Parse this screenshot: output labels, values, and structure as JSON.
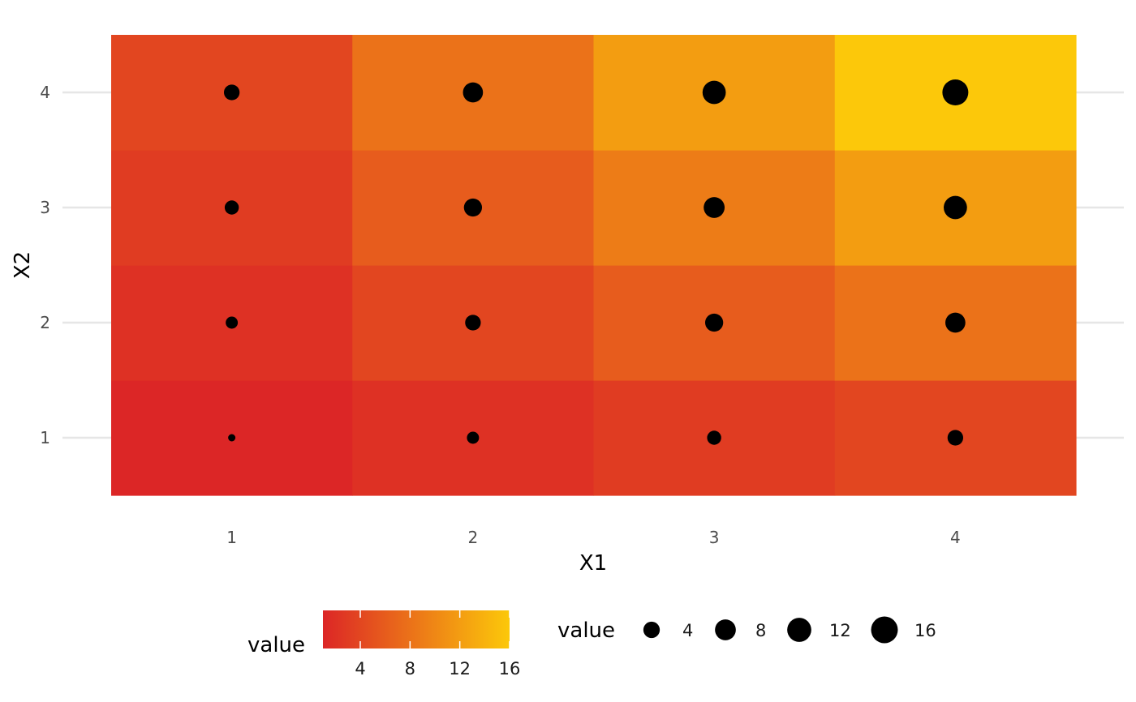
{
  "chart_data": {
    "type": "heatmap",
    "title": "",
    "xlabel": "X1",
    "ylabel": "X2",
    "x_categories": [
      "1",
      "2",
      "3",
      "4"
    ],
    "y_categories": [
      "1",
      "2",
      "3",
      "4"
    ],
    "cells": [
      {
        "x": 1,
        "y": 1,
        "value": 1
      },
      {
        "x": 2,
        "y": 1,
        "value": 2
      },
      {
        "x": 3,
        "y": 1,
        "value": 3
      },
      {
        "x": 4,
        "y": 1,
        "value": 4
      },
      {
        "x": 1,
        "y": 2,
        "value": 2
      },
      {
        "x": 2,
        "y": 2,
        "value": 4
      },
      {
        "x": 3,
        "y": 2,
        "value": 6
      },
      {
        "x": 4,
        "y": 2,
        "value": 8
      },
      {
        "x": 1,
        "y": 3,
        "value": 3
      },
      {
        "x": 2,
        "y": 3,
        "value": 6
      },
      {
        "x": 3,
        "y": 3,
        "value": 9
      },
      {
        "x": 4,
        "y": 3,
        "value": 12
      },
      {
        "x": 1,
        "y": 4,
        "value": 4
      },
      {
        "x": 2,
        "y": 4,
        "value": 8
      },
      {
        "x": 3,
        "y": 4,
        "value": 12
      },
      {
        "x": 4,
        "y": 4,
        "value": 16
      }
    ],
    "value_range": [
      1,
      16
    ],
    "color_scale": {
      "low": "#dc2626",
      "high": "#fcc80a"
    },
    "fill_legend": {
      "title": "value",
      "ticks": [
        4,
        8,
        12,
        16
      ],
      "tick_labels": [
        "4",
        "8",
        "12",
        "16"
      ]
    },
    "size_legend": {
      "title": "value",
      "values": [
        4,
        8,
        12,
        16
      ],
      "labels": [
        "4",
        "8",
        "12",
        "16"
      ]
    },
    "point_color": "#000000",
    "grid": true,
    "legend_position": "bottom"
  }
}
